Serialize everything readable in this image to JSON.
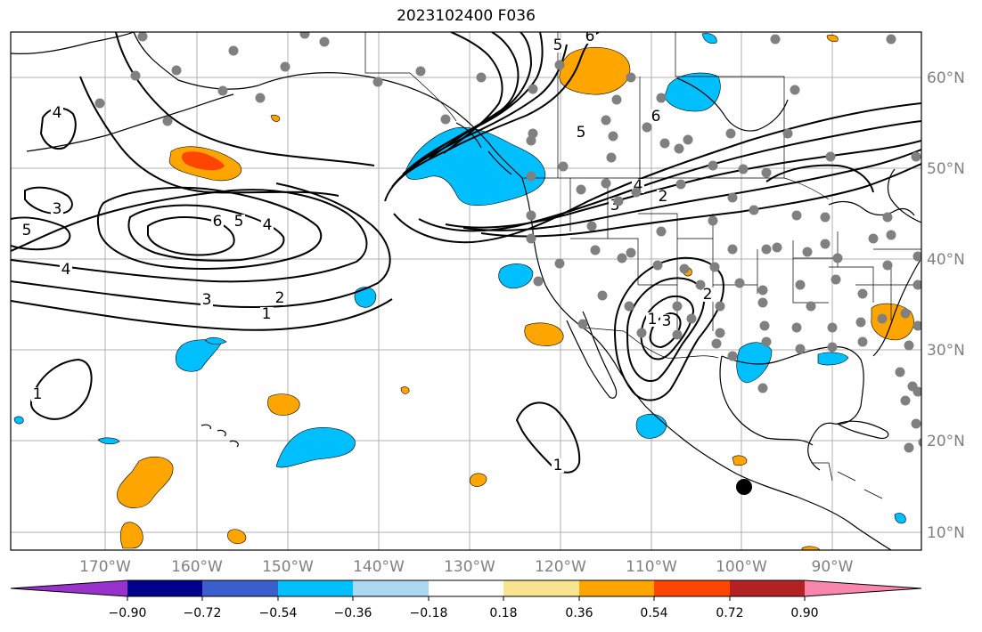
{
  "title": "2023102400 F036",
  "map": {
    "lon_labels": [
      "170°W",
      "160°W",
      "150°W",
      "140°W",
      "130°W",
      "120°W",
      "110°W",
      "100°W",
      "90°W"
    ],
    "lat_labels": [
      "60°N",
      "50°N",
      "40°N",
      "30°N",
      "20°N",
      "10°N"
    ],
    "contour_labels": [
      "6",
      "5",
      "6",
      "5",
      "4",
      "3",
      "2",
      "1",
      "4",
      "3",
      "5",
      "4",
      "6",
      "5",
      "4",
      "3",
      "2",
      "1",
      "1",
      "1",
      "3",
      "2",
      "1"
    ],
    "colors": {
      "ocean": "#ffffff",
      "coast": "#000000",
      "grid": "#b0b0b0",
      "contour": "#000000",
      "station": "#808080",
      "marker": "#000000"
    }
  },
  "colorbar": {
    "ticks": [
      "−0.90",
      "−0.72",
      "−0.54",
      "−0.36",
      "−0.18",
      "0.18",
      "0.36",
      "0.54",
      "0.72",
      "0.90"
    ],
    "colors": [
      "#9932cc",
      "#00008b",
      "#3a5fcd",
      "#00bfff",
      "#add8f2",
      "#ffffff",
      "#f9e58f",
      "#ffa500",
      "#ff4500",
      "#b22222",
      "#f987ac"
    ]
  }
}
